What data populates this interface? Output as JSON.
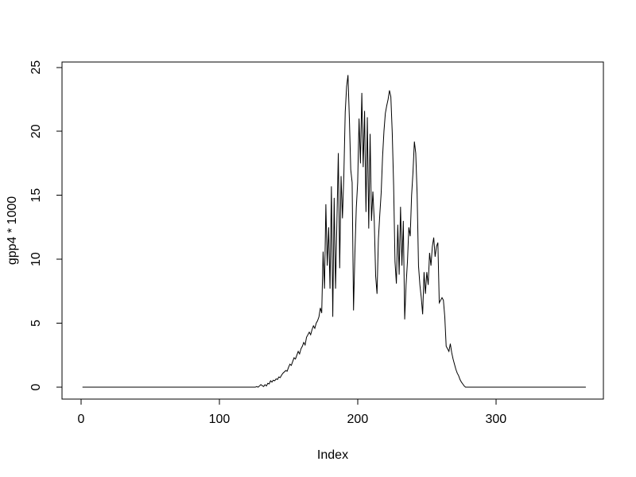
{
  "window": {
    "background_color": "#ffffff",
    "foreground_color": "#000000"
  },
  "chart_data": {
    "type": "line",
    "title": "",
    "xlabel": "Index",
    "ylabel": "gpp4 * 1000",
    "x_start": 1,
    "x_end": 365,
    "xlim": [
      -13.8,
      377.7
    ],
    "ylim": [
      -0.93,
      25.42
    ],
    "xticks": [
      0,
      100,
      200,
      300
    ],
    "yticks": [
      0,
      5,
      10,
      15,
      20,
      25
    ],
    "grid": false,
    "legend": "none",
    "line_color": "#000000",
    "values": [
      0,
      0,
      0,
      0,
      0,
      0,
      0,
      0,
      0,
      0,
      0,
      0,
      0,
      0,
      0,
      0,
      0,
      0,
      0,
      0,
      0,
      0,
      0,
      0,
      0,
      0,
      0,
      0,
      0,
      0,
      0,
      0,
      0,
      0,
      0,
      0,
      0,
      0,
      0,
      0,
      0,
      0,
      0,
      0,
      0,
      0,
      0,
      0,
      0,
      0,
      0,
      0,
      0,
      0,
      0,
      0,
      0,
      0,
      0,
      0,
      0,
      0,
      0,
      0,
      0,
      0,
      0,
      0,
      0,
      0,
      0,
      0,
      0,
      0,
      0,
      0,
      0,
      0,
      0,
      0,
      0,
      0,
      0,
      0,
      0,
      0,
      0,
      0,
      0,
      0,
      0,
      0,
      0,
      0,
      0,
      0,
      0,
      0,
      0,
      0,
      0,
      0,
      0,
      0,
      0,
      0,
      0,
      0,
      0,
      0,
      0,
      0,
      0,
      0,
      0,
      0,
      0,
      0,
      0,
      0,
      0,
      0,
      0,
      0,
      0,
      0,
      0.05,
      0,
      0.1,
      0.2,
      0.12,
      0.05,
      0.2,
      0.1,
      0.3,
      0.25,
      0.5,
      0.4,
      0.55,
      0.5,
      0.65,
      0.6,
      0.8,
      0.75,
      0.95,
      1.1,
      1.2,
      1.3,
      1.25,
      1.55,
      1.8,
      1.7,
      2.0,
      2.3,
      2.2,
      2.5,
      2.8,
      2.6,
      3.0,
      3.2,
      3.5,
      3.3,
      3.9,
      4.1,
      4.3,
      4.1,
      4.5,
      4.8,
      4.6,
      5.0,
      5.2,
      5.5,
      6.2,
      5.8,
      10.6,
      7.7,
      14.3,
      9.5,
      12.5,
      7.7,
      15.7,
      5.5,
      14.8,
      7.7,
      13.0,
      18.3,
      9.3,
      16.5,
      13.2,
      16.5,
      21.5,
      23.5,
      24.4,
      21.0,
      17.0,
      16.0,
      6.0,
      10.5,
      14.0,
      16.0,
      21.0,
      17.5,
      23.0,
      17.2,
      21.6,
      13.7,
      21.1,
      12.4,
      19.8,
      13.0,
      15.3,
      13.0,
      8.7,
      7.3,
      11.6,
      13.5,
      15.2,
      18.0,
      20.0,
      21.4,
      22.0,
      22.5,
      23.2,
      22.7,
      19.9,
      15.8,
      9.8,
      8.1,
      12.7,
      8.8,
      14.1,
      9.5,
      13.0,
      5.3,
      8.0,
      9.8,
      12.5,
      11.8,
      15.0,
      16.8,
      19.2,
      18.3,
      15.1,
      9.5,
      8.0,
      7.0,
      5.7,
      9.0,
      7.3,
      9.0,
      8.0,
      10.5,
      9.5,
      11.0,
      11.7,
      10.2,
      11.0,
      11.3,
      6.6,
      6.8,
      7.0,
      6.8,
      5.5,
      3.2,
      3.0,
      2.8,
      3.4,
      2.7,
      2.2,
      1.8,
      1.4,
      1.1,
      0.9,
      0.6,
      0.4,
      0.25,
      0.1,
      0,
      0,
      0,
      0,
      0,
      0,
      0,
      0,
      0,
      0,
      0,
      0,
      0,
      0,
      0,
      0,
      0,
      0,
      0,
      0,
      0,
      0,
      0,
      0,
      0,
      0,
      0,
      0,
      0,
      0,
      0,
      0,
      0,
      0,
      0,
      0,
      0,
      0,
      0,
      0,
      0,
      0,
      0,
      0,
      0,
      0,
      0,
      0,
      0,
      0,
      0,
      0,
      0,
      0,
      0,
      0,
      0,
      0,
      0,
      0,
      0,
      0,
      0,
      0,
      0,
      0,
      0,
      0,
      0,
      0,
      0,
      0,
      0,
      0,
      0,
      0,
      0,
      0,
      0,
      0,
      0,
      0,
      0,
      0,
      0,
      0,
      0,
      0
    ]
  }
}
